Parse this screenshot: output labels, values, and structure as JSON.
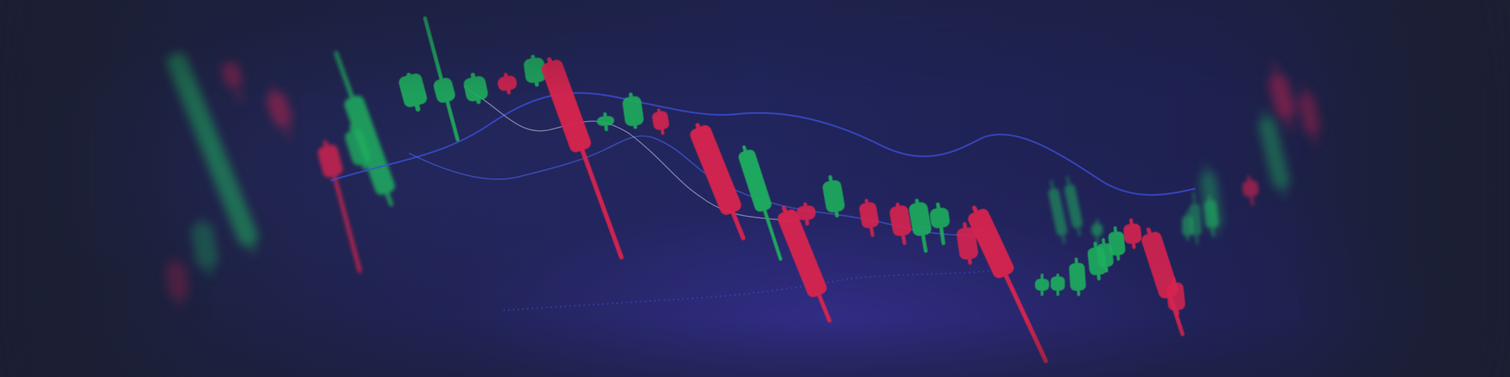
{
  "scene": {
    "description_kind": "blurred candlestick chart background",
    "colors": {
      "background": "#1c2036",
      "bullish": "#1fae5e",
      "bearish": "#d8244f",
      "moving_average_a": "#3c4fd6",
      "moving_average_b": "#4a63e8",
      "glow": "#4a3aa8"
    }
  }
}
